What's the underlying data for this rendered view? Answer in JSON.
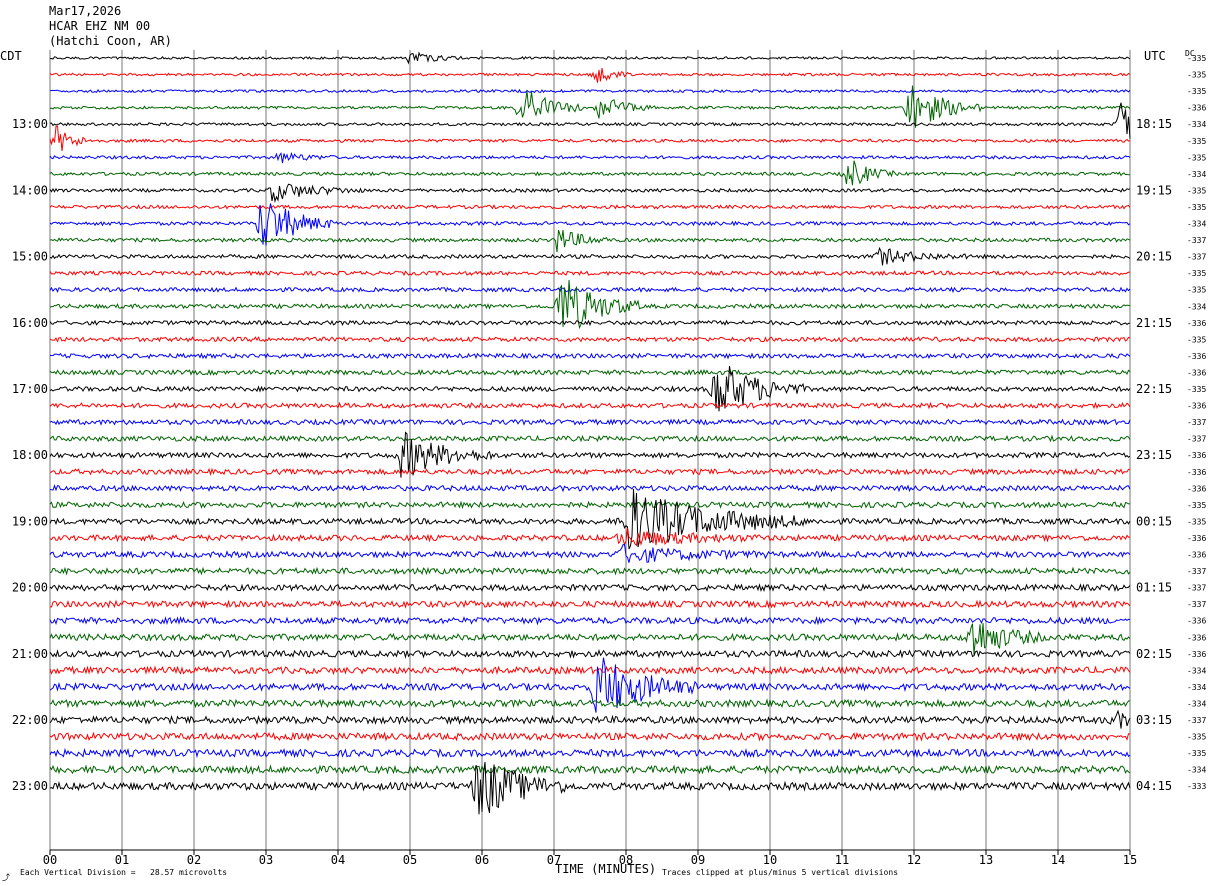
{
  "header": {
    "date": "Mar17,2026",
    "station": "HCAR EHZ NM 00",
    "location": "(Hatchi Coon, AR)"
  },
  "left_tz": "CDT",
  "right_tz": "UTC",
  "dc_label": "DC",
  "footer": {
    "x_axis_title": "TIME (MINUTES)",
    "scale_note": "Each Vertical Division =   28.57 microvolts",
    "clip_note": "Traces clipped at plus/minus 5 vertical divisions",
    "corner_mark": "⤴"
  },
  "colors": {
    "black": "#000000",
    "red": "#ff0000",
    "blue": "#0000ff",
    "green": "#006400"
  },
  "chart_data": {
    "type": "line",
    "title": "HCAR EHZ NM 00",
    "xlabel": "TIME (MINUTES)",
    "x_ticks": [
      "00",
      "01",
      "02",
      "03",
      "04",
      "05",
      "06",
      "07",
      "08",
      "09",
      "10",
      "11",
      "12",
      "13",
      "14",
      "15"
    ],
    "xlim": [
      0,
      15
    ],
    "trace_colors": [
      "black",
      "red",
      "blue",
      "green"
    ],
    "left_time_labels": [
      "13:00",
      "14:00",
      "15:00",
      "16:00",
      "17:00",
      "18:00",
      "19:00",
      "20:00",
      "21:00",
      "22:00",
      "23:00"
    ],
    "right_time_labels": [
      "18:15",
      "19:15",
      "20:15",
      "21:15",
      "22:15",
      "23:15",
      "00:15",
      "01:15",
      "02:15",
      "03:15",
      "04:15"
    ],
    "dc_offsets": [
      "-335",
      "-335",
      "-335",
      "-336",
      "-334",
      "-335",
      "-335",
      "-334",
      "-335",
      "-335",
      "-334",
      "-337",
      "-337",
      "-335",
      "-335",
      "-334",
      "-336",
      "-335",
      "-336",
      "-336",
      "-335",
      "-336",
      "-337",
      "-337",
      "-336",
      "-336",
      "-336",
      "-335",
      "-335",
      "-336",
      "-336",
      "-337",
      "-337",
      "-337",
      "-336",
      "-336",
      "-336",
      "-334",
      "-334",
      "-334",
      "-337",
      "-335",
      "-335",
      "-334",
      "-333"
    ],
    "events": [
      {
        "trace": 0,
        "minute": 5.0,
        "amp": 6,
        "dur": 0.3
      },
      {
        "trace": 1,
        "minute": 7.6,
        "amp": 8,
        "dur": 0.2
      },
      {
        "trace": 3,
        "minute": 6.55,
        "amp": 22,
        "dur": 0.35
      },
      {
        "trace": 3,
        "minute": 7.65,
        "amp": 12,
        "dur": 0.3
      },
      {
        "trace": 3,
        "minute": 11.95,
        "amp": 26,
        "dur": 0.4
      },
      {
        "trace": 4,
        "minute": 14.9,
        "amp": 32,
        "dur": 0.25
      },
      {
        "trace": 5,
        "minute": 0.1,
        "amp": 14,
        "dur": 0.2
      },
      {
        "trace": 6,
        "minute": 3.2,
        "amp": 5,
        "dur": 0.3
      },
      {
        "trace": 7,
        "minute": 11.1,
        "amp": 16,
        "dur": 0.25
      },
      {
        "trace": 8,
        "minute": 3.1,
        "amp": 10,
        "dur": 0.5
      },
      {
        "trace": 10,
        "minute": 2.95,
        "amp": 30,
        "dur": 0.4
      },
      {
        "trace": 11,
        "minute": 7.05,
        "amp": 12,
        "dur": 0.3
      },
      {
        "trace": 12,
        "minute": 11.5,
        "amp": 8,
        "dur": 0.5
      },
      {
        "trace": 15,
        "minute": 7.1,
        "amp": 34,
        "dur": 0.45
      },
      {
        "trace": 20,
        "minute": 9.25,
        "amp": 32,
        "dur": 0.5
      },
      {
        "trace": 24,
        "minute": 4.9,
        "amp": 24,
        "dur": 0.5
      },
      {
        "trace": 28,
        "minute": 8.0,
        "amp": 34,
        "dur": 1.0
      },
      {
        "trace": 29,
        "minute": 7.95,
        "amp": 8,
        "dur": 0.8
      },
      {
        "trace": 30,
        "minute": 7.95,
        "amp": 8,
        "dur": 0.8
      },
      {
        "trace": 35,
        "minute": 12.8,
        "amp": 22,
        "dur": 0.4
      },
      {
        "trace": 38,
        "minute": 7.6,
        "amp": 34,
        "dur": 0.55
      },
      {
        "trace": 40,
        "minute": 14.8,
        "amp": 6,
        "dur": 0.6
      },
      {
        "trace": 44,
        "minute": 5.95,
        "amp": 34,
        "dur": 0.5
      }
    ]
  }
}
